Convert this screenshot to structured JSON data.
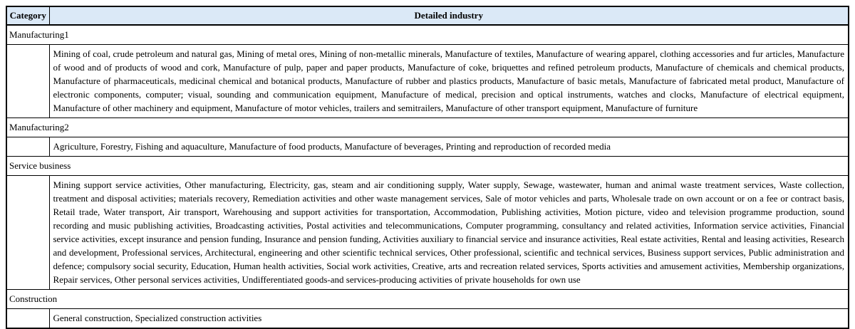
{
  "header": {
    "category": "Category",
    "detail": "Detailed industry"
  },
  "colors": {
    "header_bg": "#dbe9f7",
    "border": "#000000",
    "text": "#000000"
  },
  "rows": [
    {
      "kind": "category",
      "label": "Manufacturing1"
    },
    {
      "kind": "detail",
      "text": "Mining of coal, crude petroleum and natural gas, Mining of metal ores, Mining of non-metallic minerals, Manufacture of textiles, Manufacture of wearing apparel, clothing accessories and fur articles, Manufacture of wood and of products of wood and cork, Manufacture of pulp, paper and paper products, Manufacture of coke, briquettes and refined petroleum products, Manufacture of chemicals and chemical products, Manufacture of pharmaceuticals, medicinal chemical and botanical products, Manufacture of rubber and plastics products, Manufacture of basic metals, Manufacture of fabricated metal product, Manufacture of electronic components, computer; visual, sounding and communication equipment, Manufacture of medical, precision and optical instruments, watches and clocks, Manufacture of electrical equipment, Manufacture of other machinery and equipment, Manufacture of motor vehicles, trailers and semitrailers, Manufacture of other transport equipment, Manufacture of furniture"
    },
    {
      "kind": "category",
      "label": "Manufacturing2"
    },
    {
      "kind": "detail",
      "text": "Agriculture, Forestry, Fishing and aquaculture, Manufacture of food products, Manufacture of beverages, Printing and reproduction of recorded media"
    },
    {
      "kind": "category",
      "label": "Service business"
    },
    {
      "kind": "detail",
      "text": "Mining support service activities, Other manufacturing, Electricity, gas, steam and air conditioning supply, Water supply, Sewage, wastewater, human and animal waste treatment services, Waste collection, treatment and disposal activities; materials recovery, Remediation activities and other waste management services, Sale of motor vehicles and parts, Wholesale trade on own account or on a fee or contract basis, Retail trade, Water transport, Air transport, Warehousing and support activities for transportation, Accommodation, Publishing activities, Motion picture, video and television programme production, sound recording and music publishing activities, Broadcasting activities, Postal activities and telecommunications, Computer programming, consultancy and related activities, Information service activities, Financial service activities, except insurance and pension funding, Insurance and pension funding, Activities auxiliary to financial service and insurance activities, Real estate activities, Rental and leasing activities, Research and development, Professional services, Architectural, engineering and other scientific technical services, Other professional, scientific and technical services, Business support services, Public administration and defence; compulsory social security, Education, Human health activities, Social work activities, Creative, arts and recreation related services, Sports activities and amusement activities, Membership organizations, Repair services, Other personal services activities, Undifferentiated goods-and services-producing activities of private households for own use"
    },
    {
      "kind": "category",
      "label": "Construction"
    },
    {
      "kind": "detail",
      "text": "General construction, Specialized construction activities"
    }
  ]
}
